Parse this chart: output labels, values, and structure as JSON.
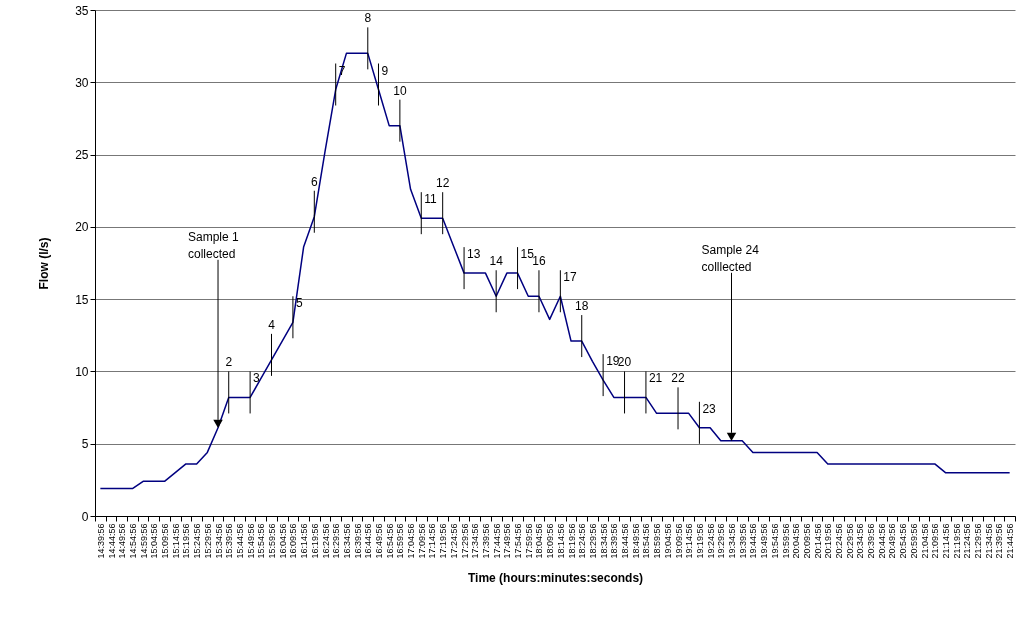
{
  "chart_data": {
    "type": "line",
    "xlabel": "Time (hours:minutes:seconds)",
    "ylabel": "Flow (l/s)",
    "categories": [
      "14:39:56",
      "14:44:56",
      "14:49:56",
      "14:54:56",
      "14:59:56",
      "15:04:56",
      "15:09:56",
      "15:14:56",
      "15:19:56",
      "15:24:56",
      "15:29:56",
      "15:34:56",
      "15:39:56",
      "15:44:56",
      "15:49:56",
      "15:54:56",
      "15:59:56",
      "16:04:56",
      "16:09:56",
      "16:14:56",
      "16:19:56",
      "16:24:56",
      "16:29:56",
      "16:34:56",
      "16:39:56",
      "16:44:56",
      "16:49:56",
      "16:54:56",
      "16:59:56",
      "17:04:56",
      "17:09:56",
      "17:14:56",
      "17:19:56",
      "17:24:56",
      "17:29:56",
      "17:34:56",
      "17:39:56",
      "17:44:56",
      "17:49:56",
      "17:54:56",
      "17:59:56",
      "18:04:56",
      "18:09:56",
      "18:14:56",
      "18:19:56",
      "18:24:56",
      "18:29:56",
      "18:34:56",
      "18:39:56",
      "18:44:56",
      "18:49:56",
      "18:54:56",
      "18:59:56",
      "19:04:56",
      "19:09:56",
      "19:14:56",
      "19:19:56",
      "19:24:56",
      "19:29:56",
      "19:34:56",
      "19:39:56",
      "19:44:56",
      "19:49:56",
      "19:54:56",
      "19:59:56",
      "20:04:56",
      "20:09:56",
      "20:14:56",
      "20:19:56",
      "20:24:56",
      "20:29:56",
      "20:34:56",
      "20:39:56",
      "20:44:56",
      "20:49:56",
      "20:54:56",
      "20:59:56",
      "21:04:56",
      "21:09:56",
      "21:14:56",
      "21:19:56",
      "21:24:56",
      "21:29:56",
      "21:34:56",
      "21:39:56",
      "21:44:56"
    ],
    "values": [
      1.9,
      1.9,
      1.9,
      1.9,
      2.4,
      2.4,
      2.4,
      3.0,
      3.6,
      3.6,
      4.4,
      6.1,
      8.2,
      8.2,
      8.2,
      9.5,
      10.8,
      12.1,
      13.4,
      18.6,
      20.7,
      25.2,
      29.5,
      32,
      32,
      32,
      29.5,
      27,
      27,
      22.6,
      20.6,
      20.6,
      20.6,
      18.7,
      16.8,
      16.8,
      16.8,
      15.2,
      16.8,
      16.8,
      15.2,
      15.2,
      13.6,
      15.2,
      12.1,
      12.1,
      10.7,
      9.4,
      8.2,
      8.2,
      8.2,
      8.2,
      7.1,
      7.1,
      7.1,
      7.1,
      6.1,
      6.1,
      5.2,
      5.2,
      5.2,
      4.4,
      4.4,
      4.4,
      4.4,
      4.4,
      4.4,
      4.4,
      3.6,
      3.6,
      3.6,
      3.6,
      3.6,
      3.6,
      3.6,
      3.6,
      3.6,
      3.6,
      3.6,
      3.0,
      3.0,
      3.0,
      3.0,
      3.0,
      3.0,
      3.0
    ],
    "color": "#000080",
    "ylim": [
      0,
      35
    ],
    "yticks": [
      0,
      5,
      10,
      15,
      20,
      25,
      30,
      35
    ],
    "grid": "y",
    "annotations": [
      {
        "text": "Sample 1\ncollected",
        "x": "15:34:56",
        "y": 6.1
      },
      {
        "text": "2",
        "x": "15:39:56",
        "y": 8.2
      },
      {
        "text": "3",
        "x": "15:49:56",
        "y": 8.2
      },
      {
        "text": "4",
        "x": "15:59:56",
        "y": 10.8
      },
      {
        "text": "5",
        "x": "16:09:56",
        "y": 13.4
      },
      {
        "text": "6",
        "x": "16:19:56",
        "y": 20.7
      },
      {
        "text": "7",
        "x": "16:29:56",
        "y": 29.5
      },
      {
        "text": "8",
        "x": "16:44:56",
        "y": 32
      },
      {
        "text": "9",
        "x": "16:49:56",
        "y": 29.5
      },
      {
        "text": "10",
        "x": "16:59:56",
        "y": 27
      },
      {
        "text": "11",
        "x": "17:09:56",
        "y": 20.6
      },
      {
        "text": "12",
        "x": "17:19:56",
        "y": 20.6
      },
      {
        "text": "13",
        "x": "17:29:56",
        "y": 16.8
      },
      {
        "text": "14",
        "x": "17:44:56",
        "y": 15.2
      },
      {
        "text": "15",
        "x": "17:54:56",
        "y": 16.8
      },
      {
        "text": "16",
        "x": "18:04:56",
        "y": 15.2
      },
      {
        "text": "17",
        "x": "18:14:56",
        "y": 15.2
      },
      {
        "text": "18",
        "x": "18:24:56",
        "y": 12.1
      },
      {
        "text": "19",
        "x": "18:34:56",
        "y": 9.4
      },
      {
        "text": "20",
        "x": "18:44:56",
        "y": 8.2
      },
      {
        "text": "21",
        "x": "18:54:56",
        "y": 8.2
      },
      {
        "text": "22",
        "x": "19:09:56",
        "y": 7.1
      },
      {
        "text": "23",
        "x": "19:19:56",
        "y": 6.1
      },
      {
        "text": "Sample 24\ncolllected",
        "x": "19:34:56",
        "y": 5.2
      }
    ]
  }
}
